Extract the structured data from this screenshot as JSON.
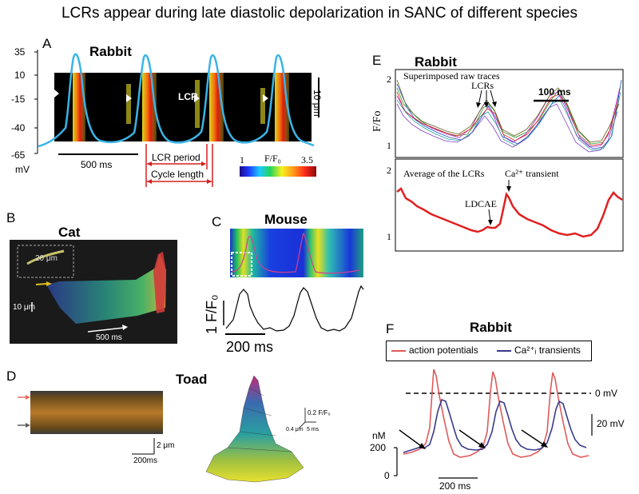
{
  "figure": {
    "title": "LCRs appear during late diastolic depolarization in SANC of different species"
  },
  "panelA": {
    "letter": "A",
    "species": "Rabbit",
    "y_ticks": [
      "35",
      "10",
      "-15",
      "-40",
      "-65"
    ],
    "y_unit": "mV",
    "lcr_label": "LCR",
    "scale_time": "500 ms",
    "scale_space": "10 μm",
    "lcr_period": "LCR period",
    "cycle_length": "Cycle length",
    "colorbar_title": "F/F₀",
    "colorbar_min": "1",
    "colorbar_max": "3.5",
    "trace_color": "#3ab4e6",
    "line_color": "#d62020"
  },
  "panelB": {
    "letter": "B",
    "species": "Cat",
    "scale_inset": "20 μm",
    "scale_space": "10 μm",
    "scale_time": "500 ms"
  },
  "panelC": {
    "letter": "C",
    "species": "Mouse",
    "y_scale": "1 F/F₀",
    "scale_time": "200 ms"
  },
  "panelD": {
    "letter": "D",
    "species": "Toad",
    "scale_space": "2 μm",
    "scale_time": "200ms",
    "surf_z": "0.2 F/F₀",
    "surf_x": "0.4 μm",
    "surf_t": "5 ms"
  },
  "panelE": {
    "letter": "E",
    "species": "Rabbit",
    "y_label": "F/Fo",
    "top_title": "Superimposed raw traces",
    "top_lcrs": "LCRs",
    "top_scale": "100 ms",
    "top_ticks": [
      "2",
      "1"
    ],
    "bottom_title": "Average of the LCRs",
    "bottom_ca": "Ca²⁺ transient",
    "bottom_ldcae": "LDCAE",
    "bottom_ticks": [
      "2",
      "1"
    ],
    "avg_color": "#e02020"
  },
  "panelF": {
    "letter": "F",
    "species": "Rabbit",
    "legend_ap": "action potentials",
    "legend_ca": "Ca²⁺ᵢ transients",
    "zero_mv": "0 mV",
    "scale_mv": "20 mV",
    "nm_label": "nM",
    "nm_200": "200",
    "nm_0": "0",
    "scale_time": "200 ms",
    "ap_color": "#e05a5a",
    "ca_color": "#3a3a8c"
  }
}
